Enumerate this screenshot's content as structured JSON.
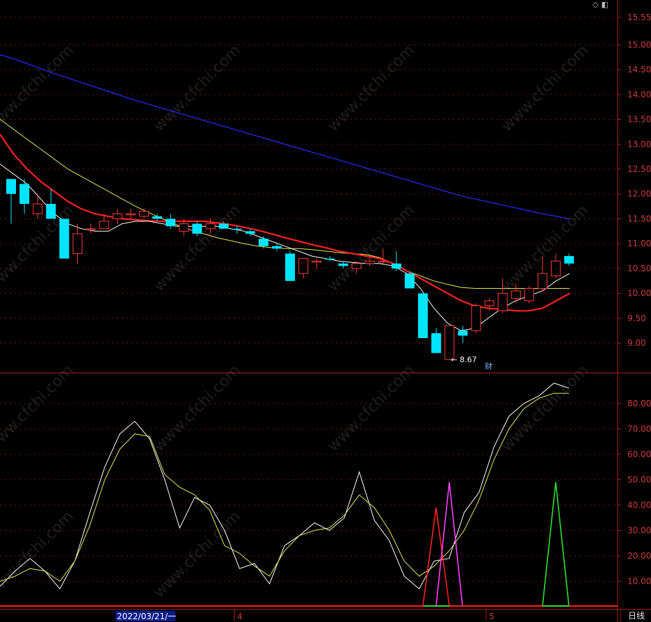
{
  "window": {
    "period_tab": "日线",
    "icons": [
      "diamond-icon",
      "panel-icon"
    ]
  },
  "watermark": "www.cfchi.com",
  "chart_data": [
    {
      "type": "candlestick",
      "yticks": [
        "15.55",
        "15.00",
        "14.50",
        "14.00",
        "13.50",
        "13.00",
        "12.50",
        "12.00",
        "11.50",
        "11.00",
        "10.50",
        "10.00",
        "9.50",
        "9.00"
      ],
      "ylim": [
        8.4,
        15.9
      ],
      "low_annotation": "8.67",
      "event_marker": "财",
      "candles": [
        {
          "o": 12.0,
          "h": 12.3,
          "l": 11.4,
          "c": 12.3,
          "up": false
        },
        {
          "o": 12.2,
          "h": 12.3,
          "l": 11.6,
          "c": 11.8,
          "up": false
        },
        {
          "o": 11.6,
          "h": 12.0,
          "l": 11.5,
          "c": 11.8,
          "up": true
        },
        {
          "o": 11.8,
          "h": 12.1,
          "l": 11.5,
          "c": 11.5,
          "up": false
        },
        {
          "o": 11.5,
          "h": 11.5,
          "l": 10.7,
          "c": 10.7,
          "up": false
        },
        {
          "o": 10.8,
          "h": 11.4,
          "l": 10.6,
          "c": 11.2,
          "up": true
        },
        {
          "o": 11.3,
          "h": 11.4,
          "l": 11.2,
          "c": 11.3,
          "up": true
        },
        {
          "o": 11.3,
          "h": 11.6,
          "l": 11.3,
          "c": 11.45,
          "up": true
        },
        {
          "o": 11.5,
          "h": 11.7,
          "l": 11.4,
          "c": 11.6,
          "up": true
        },
        {
          "o": 11.6,
          "h": 11.7,
          "l": 11.5,
          "c": 11.6,
          "up": true
        },
        {
          "o": 11.55,
          "h": 11.7,
          "l": 11.5,
          "c": 11.65,
          "up": true
        },
        {
          "o": 11.55,
          "h": 11.6,
          "l": 11.45,
          "c": 11.5,
          "up": false
        },
        {
          "o": 11.5,
          "h": 11.6,
          "l": 11.3,
          "c": 11.35,
          "up": false
        },
        {
          "o": 11.25,
          "h": 11.5,
          "l": 11.15,
          "c": 11.4,
          "up": true
        },
        {
          "o": 11.4,
          "h": 11.45,
          "l": 11.15,
          "c": 11.2,
          "up": false
        },
        {
          "o": 11.3,
          "h": 11.5,
          "l": 11.2,
          "c": 11.4,
          "up": true
        },
        {
          "o": 11.4,
          "h": 11.45,
          "l": 11.3,
          "c": 11.3,
          "up": false
        },
        {
          "o": 11.3,
          "h": 11.35,
          "l": 11.2,
          "c": 11.28,
          "up": false
        },
        {
          "o": 11.25,
          "h": 11.3,
          "l": 11.15,
          "c": 11.2,
          "up": false
        },
        {
          "o": 11.1,
          "h": 11.15,
          "l": 10.9,
          "c": 10.95,
          "up": false
        },
        {
          "o": 10.95,
          "h": 11.0,
          "l": 10.85,
          "c": 10.9,
          "up": false
        },
        {
          "o": 10.8,
          "h": 10.85,
          "l": 10.25,
          "c": 10.25,
          "up": false
        },
        {
          "o": 10.4,
          "h": 10.7,
          "l": 10.3,
          "c": 10.7,
          "up": true
        },
        {
          "o": 10.65,
          "h": 10.7,
          "l": 10.5,
          "c": 10.65,
          "up": true
        },
        {
          "o": 10.7,
          "h": 10.75,
          "l": 10.65,
          "c": 10.68,
          "up": false
        },
        {
          "o": 10.6,
          "h": 10.65,
          "l": 10.5,
          "c": 10.55,
          "up": false
        },
        {
          "o": 10.5,
          "h": 10.65,
          "l": 10.4,
          "c": 10.6,
          "up": true
        },
        {
          "o": 10.6,
          "h": 10.75,
          "l": 10.55,
          "c": 10.65,
          "up": true
        },
        {
          "o": 10.65,
          "h": 10.9,
          "l": 10.6,
          "c": 10.65,
          "up": true
        },
        {
          "o": 10.6,
          "h": 10.85,
          "l": 10.45,
          "c": 10.5,
          "up": false
        },
        {
          "o": 10.4,
          "h": 10.45,
          "l": 10.1,
          "c": 10.1,
          "up": false
        },
        {
          "o": 10.0,
          "h": 10.0,
          "l": 9.1,
          "c": 9.1,
          "up": false
        },
        {
          "o": 9.2,
          "h": 9.3,
          "l": 8.8,
          "c": 8.8,
          "up": false
        },
        {
          "o": 8.67,
          "h": 9.35,
          "l": 8.67,
          "c": 9.35,
          "up": true
        },
        {
          "o": 9.25,
          "h": 9.35,
          "l": 9.0,
          "c": 9.15,
          "up": false
        },
        {
          "o": 9.25,
          "h": 9.8,
          "l": 9.2,
          "c": 9.75,
          "up": true
        },
        {
          "o": 9.75,
          "h": 9.9,
          "l": 9.65,
          "c": 9.85,
          "up": true
        },
        {
          "o": 9.65,
          "h": 10.3,
          "l": 9.6,
          "c": 10.0,
          "up": true
        },
        {
          "o": 9.9,
          "h": 10.2,
          "l": 9.8,
          "c": 10.05,
          "up": true
        },
        {
          "o": 9.85,
          "h": 10.15,
          "l": 9.8,
          "c": 10.1,
          "up": true
        },
        {
          "o": 10.1,
          "h": 10.75,
          "l": 10.05,
          "c": 10.4,
          "up": true
        },
        {
          "o": 10.35,
          "h": 10.8,
          "l": 10.3,
          "c": 10.65,
          "up": true
        },
        {
          "o": 10.75,
          "h": 10.8,
          "l": 10.55,
          "c": 10.6,
          "up": false
        }
      ],
      "ma_white": [
        12.6,
        12.4,
        12.2,
        11.9,
        11.6,
        11.4,
        11.3,
        11.25,
        11.25,
        11.4,
        11.45,
        11.45,
        11.4,
        11.35,
        11.35,
        11.35,
        11.35,
        11.3,
        11.25,
        11.15,
        11.05,
        10.95,
        10.85,
        10.75,
        10.7,
        10.65,
        10.62,
        10.6,
        10.6,
        10.55,
        10.4,
        10.1,
        9.7,
        9.4,
        9.25,
        9.3,
        9.5,
        9.7,
        9.85,
        9.95,
        10.05,
        10.25,
        10.4
      ],
      "ma_red": [
        13.2,
        12.8,
        12.5,
        12.25,
        12.05,
        11.85,
        11.7,
        11.6,
        11.55,
        11.5,
        11.48,
        11.46,
        11.45,
        11.45,
        11.45,
        11.45,
        11.42,
        11.38,
        11.33,
        11.27,
        11.2,
        11.12,
        11.05,
        10.98,
        10.92,
        10.85,
        10.8,
        10.75,
        10.7,
        10.6,
        10.45,
        10.3,
        10.15,
        10.0,
        9.85,
        9.75,
        9.7,
        9.68,
        9.65,
        9.65,
        9.7,
        9.85,
        10.0
      ],
      "ma_yellow": [
        13.5,
        13.3,
        13.1,
        12.9,
        12.7,
        12.5,
        12.35,
        12.2,
        12.05,
        11.9,
        11.75,
        11.62,
        11.5,
        11.38,
        11.28,
        11.2,
        11.12,
        11.06,
        11.0,
        10.95,
        10.92,
        10.9,
        10.9,
        10.88,
        10.85,
        10.82,
        10.8,
        10.78,
        10.72,
        10.6,
        10.45,
        10.35,
        10.25,
        10.18,
        10.12,
        10.1,
        10.1,
        10.1,
        10.1,
        10.1,
        10.1,
        10.1,
        10.1
      ],
      "ma_blue": [
        14.8,
        14.72,
        14.62,
        14.52,
        14.42,
        14.33,
        14.24,
        14.15,
        14.06,
        13.97,
        13.88,
        13.8,
        13.72,
        13.64,
        13.56,
        13.48,
        13.4,
        13.32,
        13.24,
        13.16,
        13.08,
        13.0,
        12.92,
        12.84,
        12.76,
        12.68,
        12.6,
        12.52,
        12.44,
        12.36,
        12.28,
        12.2,
        12.12,
        12.04,
        11.96,
        11.9,
        11.84,
        11.78,
        11.72,
        11.66,
        11.6,
        11.55,
        11.5
      ]
    },
    {
      "type": "line",
      "yticks": [
        "80.00",
        "70.00",
        "60.00",
        "50.00",
        "40.00",
        "30.00",
        "20.00",
        "10.00"
      ],
      "ylim": [
        0,
        92
      ],
      "x_labels": [
        "2022/03/21/一",
        "4",
        "5"
      ],
      "line_white": [
        8,
        14,
        19,
        14,
        7,
        18,
        37,
        55,
        68,
        73,
        66,
        50,
        31,
        43,
        40,
        30,
        15,
        17,
        9,
        24,
        28,
        33,
        30,
        35,
        53,
        34,
        26,
        12,
        7,
        18,
        19,
        37,
        45,
        63,
        75,
        80,
        83,
        88,
        86
      ],
      "line_yellow": [
        10,
        12,
        15,
        14,
        10,
        18,
        32,
        50,
        62,
        68,
        67,
        52,
        47,
        44,
        38,
        24,
        21,
        16,
        12,
        22,
        28,
        30,
        31,
        36,
        44,
        39,
        30,
        18,
        12,
        16,
        22,
        30,
        42,
        58,
        70,
        78,
        82,
        84,
        84
      ],
      "spikes": [
        {
          "color": "#ff2020",
          "peak": 39,
          "i": 31
        },
        {
          "color": "#ff40ff",
          "peak": 49,
          "i": 32
        },
        {
          "color": "#30e030",
          "peak": 49,
          "i": 41
        }
      ]
    }
  ]
}
